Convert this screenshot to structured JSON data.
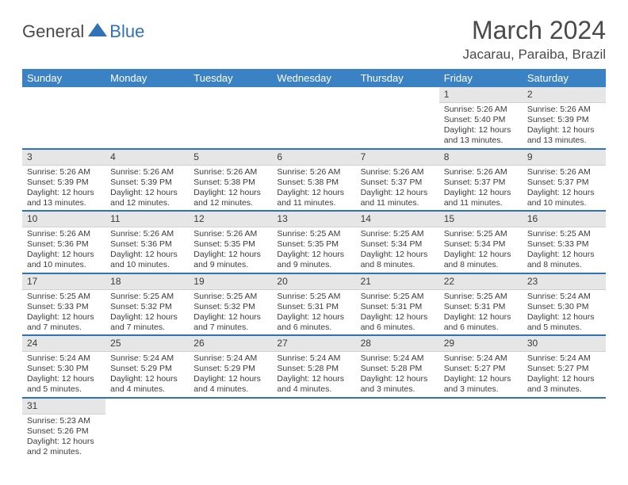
{
  "logo": {
    "general": "General",
    "blue": "Blue"
  },
  "title": "March 2024",
  "location": "Jacarau, Paraiba, Brazil",
  "colors": {
    "header_bg": "#3b82c4",
    "header_text": "#ffffff",
    "daynum_bg": "#e6e6e6",
    "row_border": "#2f72b8",
    "text": "#3b3b3b",
    "logo_blue": "#2f72b8"
  },
  "weekdays": [
    "Sunday",
    "Monday",
    "Tuesday",
    "Wednesday",
    "Thursday",
    "Friday",
    "Saturday"
  ],
  "grid": [
    [
      null,
      null,
      null,
      null,
      null,
      {
        "n": "1",
        "sr": "5:26 AM",
        "ss": "5:40 PM",
        "dl": "12 hours and 13 minutes."
      },
      {
        "n": "2",
        "sr": "5:26 AM",
        "ss": "5:39 PM",
        "dl": "12 hours and 13 minutes."
      }
    ],
    [
      {
        "n": "3",
        "sr": "5:26 AM",
        "ss": "5:39 PM",
        "dl": "12 hours and 13 minutes."
      },
      {
        "n": "4",
        "sr": "5:26 AM",
        "ss": "5:39 PM",
        "dl": "12 hours and 12 minutes."
      },
      {
        "n": "5",
        "sr": "5:26 AM",
        "ss": "5:38 PM",
        "dl": "12 hours and 12 minutes."
      },
      {
        "n": "6",
        "sr": "5:26 AM",
        "ss": "5:38 PM",
        "dl": "12 hours and 11 minutes."
      },
      {
        "n": "7",
        "sr": "5:26 AM",
        "ss": "5:37 PM",
        "dl": "12 hours and 11 minutes."
      },
      {
        "n": "8",
        "sr": "5:26 AM",
        "ss": "5:37 PM",
        "dl": "12 hours and 11 minutes."
      },
      {
        "n": "9",
        "sr": "5:26 AM",
        "ss": "5:37 PM",
        "dl": "12 hours and 10 minutes."
      }
    ],
    [
      {
        "n": "10",
        "sr": "5:26 AM",
        "ss": "5:36 PM",
        "dl": "12 hours and 10 minutes."
      },
      {
        "n": "11",
        "sr": "5:26 AM",
        "ss": "5:36 PM",
        "dl": "12 hours and 10 minutes."
      },
      {
        "n": "12",
        "sr": "5:26 AM",
        "ss": "5:35 PM",
        "dl": "12 hours and 9 minutes."
      },
      {
        "n": "13",
        "sr": "5:25 AM",
        "ss": "5:35 PM",
        "dl": "12 hours and 9 minutes."
      },
      {
        "n": "14",
        "sr": "5:25 AM",
        "ss": "5:34 PM",
        "dl": "12 hours and 8 minutes."
      },
      {
        "n": "15",
        "sr": "5:25 AM",
        "ss": "5:34 PM",
        "dl": "12 hours and 8 minutes."
      },
      {
        "n": "16",
        "sr": "5:25 AM",
        "ss": "5:33 PM",
        "dl": "12 hours and 8 minutes."
      }
    ],
    [
      {
        "n": "17",
        "sr": "5:25 AM",
        "ss": "5:33 PM",
        "dl": "12 hours and 7 minutes."
      },
      {
        "n": "18",
        "sr": "5:25 AM",
        "ss": "5:32 PM",
        "dl": "12 hours and 7 minutes."
      },
      {
        "n": "19",
        "sr": "5:25 AM",
        "ss": "5:32 PM",
        "dl": "12 hours and 7 minutes."
      },
      {
        "n": "20",
        "sr": "5:25 AM",
        "ss": "5:31 PM",
        "dl": "12 hours and 6 minutes."
      },
      {
        "n": "21",
        "sr": "5:25 AM",
        "ss": "5:31 PM",
        "dl": "12 hours and 6 minutes."
      },
      {
        "n": "22",
        "sr": "5:25 AM",
        "ss": "5:31 PM",
        "dl": "12 hours and 6 minutes."
      },
      {
        "n": "23",
        "sr": "5:24 AM",
        "ss": "5:30 PM",
        "dl": "12 hours and 5 minutes."
      }
    ],
    [
      {
        "n": "24",
        "sr": "5:24 AM",
        "ss": "5:30 PM",
        "dl": "12 hours and 5 minutes."
      },
      {
        "n": "25",
        "sr": "5:24 AM",
        "ss": "5:29 PM",
        "dl": "12 hours and 4 minutes."
      },
      {
        "n": "26",
        "sr": "5:24 AM",
        "ss": "5:29 PM",
        "dl": "12 hours and 4 minutes."
      },
      {
        "n": "27",
        "sr": "5:24 AM",
        "ss": "5:28 PM",
        "dl": "12 hours and 4 minutes."
      },
      {
        "n": "28",
        "sr": "5:24 AM",
        "ss": "5:28 PM",
        "dl": "12 hours and 3 minutes."
      },
      {
        "n": "29",
        "sr": "5:24 AM",
        "ss": "5:27 PM",
        "dl": "12 hours and 3 minutes."
      },
      {
        "n": "30",
        "sr": "5:24 AM",
        "ss": "5:27 PM",
        "dl": "12 hours and 3 minutes."
      }
    ],
    [
      {
        "n": "31",
        "sr": "5:23 AM",
        "ss": "5:26 PM",
        "dl": "12 hours and 2 minutes."
      },
      null,
      null,
      null,
      null,
      null,
      null
    ]
  ],
  "labels": {
    "sunrise": "Sunrise: ",
    "sunset": "Sunset: ",
    "daylight": "Daylight: "
  }
}
